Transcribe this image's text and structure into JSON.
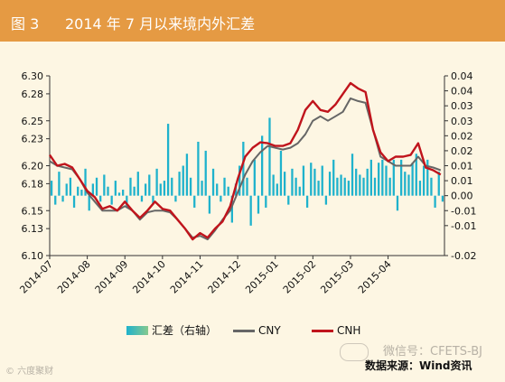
{
  "header": {
    "figure_label": "图 3",
    "title": "2014 年 7 月以来境内外汇差"
  },
  "chart_data": {
    "type": "line",
    "title": "2014 年 7 月以来境内外汇差",
    "left_axis": {
      "min": 6.1,
      "max": 6.3,
      "tick_values": [
        6.1,
        6.13,
        6.15,
        6.18,
        6.2,
        6.23,
        6.25,
        6.28,
        6.3
      ],
      "tick_labels": [
        "6.10",
        "6.13",
        "6.15",
        "6.18",
        "6.20",
        "6.23",
        "6.25",
        "6.28",
        "6.30"
      ]
    },
    "right_axis": {
      "min": -0.02,
      "max": 0.04,
      "tick_values": [
        -0.02,
        -0.01,
        -0.005,
        0.0,
        0.005,
        0.01,
        0.015,
        0.02,
        0.025,
        0.03,
        0.035,
        0.04
      ],
      "tick_labels": [
        "-0.02",
        "-0.01",
        "-0.01",
        "0.00",
        "0.01",
        "0.01",
        "0.02",
        "0.02",
        "0.03",
        "0.03",
        "0.04",
        "0.04"
      ]
    },
    "x_labels": [
      "2014-07",
      "2014-08",
      "2014-09",
      "2014-10",
      "2014-11",
      "2014-12",
      "2015-01",
      "2015-02",
      "2015-03",
      "2015-04"
    ],
    "x_range": [
      0,
      10.5
    ],
    "series": [
      {
        "name": "CNY",
        "axis": "left",
        "color": "#666666",
        "x": [
          0.0,
          0.2,
          0.4,
          0.6,
          0.8,
          1.0,
          1.2,
          1.4,
          1.6,
          1.8,
          2.0,
          2.2,
          2.4,
          2.6,
          2.8,
          3.0,
          3.2,
          3.4,
          3.6,
          3.8,
          4.0,
          4.2,
          4.4,
          4.6,
          4.8,
          5.0,
          5.2,
          5.4,
          5.6,
          5.8,
          6.0,
          6.2,
          6.4,
          6.6,
          6.8,
          7.0,
          7.2,
          7.4,
          7.6,
          7.8,
          8.0,
          8.2,
          8.4,
          8.6,
          8.8,
          9.0,
          9.2,
          9.4,
          9.6,
          9.8,
          10.0,
          10.2,
          10.4
        ],
        "values": [
          6.205,
          6.2,
          6.198,
          6.196,
          6.185,
          6.17,
          6.16,
          6.15,
          6.15,
          6.15,
          6.155,
          6.15,
          6.14,
          6.148,
          6.15,
          6.15,
          6.148,
          6.14,
          6.13,
          6.12,
          6.122,
          6.118,
          6.128,
          6.14,
          6.15,
          6.17,
          6.19,
          6.205,
          6.215,
          6.222,
          6.22,
          6.218,
          6.22,
          6.225,
          6.235,
          6.25,
          6.255,
          6.25,
          6.255,
          6.26,
          6.275,
          6.272,
          6.27,
          6.24,
          6.21,
          6.205,
          6.2,
          6.2,
          6.2,
          6.21,
          6.2,
          6.198,
          6.195
        ]
      },
      {
        "name": "CNH",
        "axis": "left",
        "color": "#c0141c",
        "x": [
          0.0,
          0.2,
          0.4,
          0.6,
          0.8,
          1.0,
          1.2,
          1.4,
          1.6,
          1.8,
          2.0,
          2.2,
          2.4,
          2.6,
          2.8,
          3.0,
          3.2,
          3.4,
          3.6,
          3.8,
          4.0,
          4.2,
          4.4,
          4.6,
          4.8,
          5.0,
          5.2,
          5.4,
          5.6,
          5.8,
          6.0,
          6.2,
          6.4,
          6.6,
          6.8,
          7.0,
          7.2,
          7.4,
          7.6,
          7.8,
          8.0,
          8.2,
          8.4,
          8.6,
          8.8,
          9.0,
          9.2,
          9.4,
          9.6,
          9.8,
          10.0,
          10.2,
          10.4
        ],
        "values": [
          6.212,
          6.2,
          6.202,
          6.198,
          6.185,
          6.172,
          6.165,
          6.152,
          6.155,
          6.15,
          6.16,
          6.15,
          6.142,
          6.15,
          6.16,
          6.152,
          6.15,
          6.14,
          6.13,
          6.118,
          6.125,
          6.12,
          6.13,
          6.138,
          6.155,
          6.185,
          6.21,
          6.22,
          6.226,
          6.225,
          6.222,
          6.222,
          6.225,
          6.24,
          6.262,
          6.272,
          6.262,
          6.26,
          6.268,
          6.28,
          6.292,
          6.286,
          6.282,
          6.24,
          6.215,
          6.205,
          6.21,
          6.21,
          6.212,
          6.225,
          6.198,
          6.195,
          6.19
        ]
      },
      {
        "name": "汇差（右轴）",
        "axis": "right",
        "type": "bar",
        "color": "#1fb2cc",
        "x": [
          0.05,
          0.15,
          0.25,
          0.35,
          0.45,
          0.55,
          0.65,
          0.75,
          0.85,
          0.95,
          1.05,
          1.15,
          1.25,
          1.35,
          1.45,
          1.55,
          1.65,
          1.75,
          1.85,
          1.95,
          2.05,
          2.15,
          2.25,
          2.35,
          2.45,
          2.55,
          2.65,
          2.75,
          2.85,
          2.95,
          3.05,
          3.15,
          3.25,
          3.35,
          3.45,
          3.55,
          3.65,
          3.75,
          3.85,
          3.95,
          4.05,
          4.15,
          4.25,
          4.35,
          4.45,
          4.55,
          4.65,
          4.75,
          4.85,
          4.95,
          5.05,
          5.15,
          5.25,
          5.35,
          5.45,
          5.55,
          5.65,
          5.75,
          5.85,
          5.95,
          6.05,
          6.15,
          6.25,
          6.35,
          6.45,
          6.55,
          6.65,
          6.75,
          6.85,
          6.95,
          7.05,
          7.15,
          7.25,
          7.35,
          7.45,
          7.55,
          7.65,
          7.75,
          7.85,
          7.95,
          8.05,
          8.15,
          8.25,
          8.35,
          8.45,
          8.55,
          8.65,
          8.75,
          8.85,
          8.95,
          9.05,
          9.15,
          9.25,
          9.35,
          9.45,
          9.55,
          9.65,
          9.75,
          9.85,
          9.95,
          10.05,
          10.15,
          10.25,
          10.35,
          10.45
        ],
        "values": [
          0.005,
          -0.003,
          0.008,
          -0.002,
          0.004,
          0.006,
          -0.004,
          0.003,
          0.002,
          0.009,
          -0.005,
          0.004,
          0.006,
          -0.002,
          0.007,
          0.003,
          -0.003,
          0.005,
          0.001,
          0.002,
          -0.004,
          0.006,
          0.003,
          0.008,
          -0.002,
          0.004,
          0.007,
          -0.003,
          0.009,
          0.004,
          0.005,
          0.024,
          0.006,
          -0.002,
          0.008,
          0.01,
          0.014,
          0.006,
          -0.004,
          0.018,
          0.005,
          0.015,
          -0.006,
          0.009,
          0.004,
          -0.002,
          0.006,
          0.003,
          -0.009,
          0.004,
          0.01,
          0.018,
          0.006,
          -0.01,
          0.012,
          -0.006,
          0.02,
          -0.004,
          0.026,
          0.007,
          0.004,
          0.015,
          0.008,
          -0.003,
          0.009,
          0.006,
          0.003,
          0.01,
          -0.004,
          0.011,
          0.009,
          0.005,
          0.01,
          -0.003,
          0.008,
          0.012,
          0.006,
          0.007,
          0.006,
          0.005,
          0.014,
          0.009,
          0.007,
          0.006,
          0.009,
          0.012,
          0.006,
          0.011,
          0.012,
          0.01,
          0.006,
          0.012,
          -0.005,
          0.012,
          0.008,
          0.007,
          0.011,
          0.014,
          0.005,
          0.01,
          0.012,
          0.006,
          -0.004,
          0.008,
          -0.002
        ]
      }
    ],
    "legend": [
      "汇差（右轴）",
      "CNY",
      "CNH"
    ],
    "legend_position": "bottom",
    "grid": false
  },
  "source": "数据来源：Wind资讯",
  "watermarks": {
    "right": "微信号：CFETS-BJ",
    "left": "© 六度聚财"
  }
}
